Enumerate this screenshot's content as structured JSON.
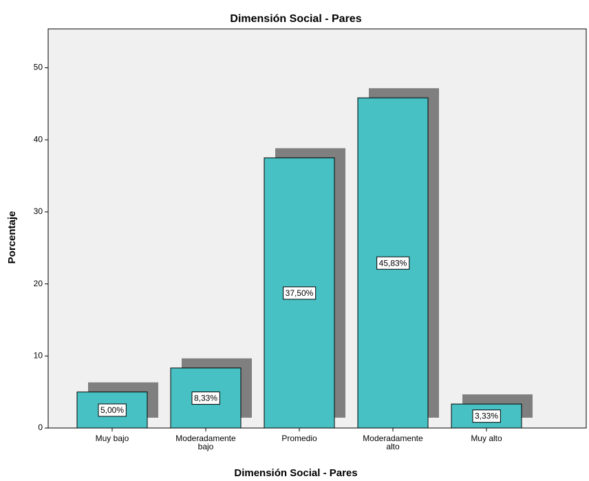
{
  "chart_data": {
    "type": "bar",
    "title": "Dimensión Social - Pares",
    "x_label": "Dimensión Social - Pares",
    "y_label": "Porcentaje",
    "categories": [
      "Muy bajo",
      "Moderadamente bajo",
      "Promedio",
      "Moderadamente alto",
      "Muy alto"
    ],
    "values": [
      5.0,
      8.33,
      37.5,
      45.83,
      3.33
    ],
    "value_labels": [
      "5,00%",
      "8,33%",
      "37,50%",
      "45,83%",
      "3,33%"
    ],
    "color": "#48c1c4",
    "shadow_color": "#7f7f7f",
    "ylim": [
      0,
      55.4
    ],
    "yticks": [
      0,
      10,
      20,
      30,
      40,
      50
    ],
    "grid": false
  }
}
